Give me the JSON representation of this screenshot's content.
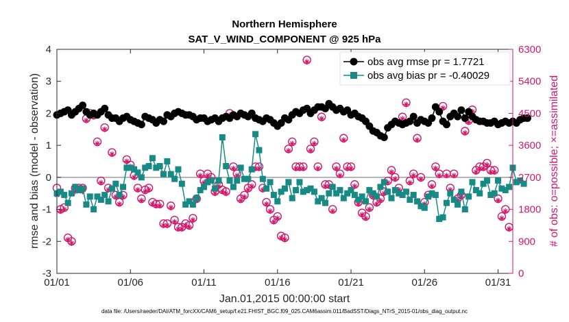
{
  "title_line1": "Northern Hemisphere",
  "title_line2": "SAT_V_WIND_COMPONENT @ 925 hPa",
  "ylabel_left": "rmse and bias (model - observation)",
  "ylabel_right": "# of obs: o=possible; ×=assimilated",
  "xlabel": "Jan.01,2015 00:00:00 start",
  "footnote": "data file: /Users/raeder/DAI/ATM_forcXX/CAM6_setup/f.e21.FHIST_BGC.f09_025.CAM6assim.011/BadSST/Diags_NTrS_2015-01/obs_diag_output.nc",
  "colors": {
    "rmse": "#000000",
    "bias": "#178a85",
    "obs": "#d4166a",
    "zero_line": "#9e9e9e",
    "axis": "#262626"
  },
  "chart_data": {
    "type": "line",
    "n_points": 124,
    "x_start_day": 1,
    "x_step_days": 0.25,
    "xlim": [
      1,
      32
    ],
    "x_tick_values": [
      1,
      6,
      11,
      16,
      21,
      26,
      31
    ],
    "x_tick_labels": [
      "01/01",
      "01/06",
      "01/11",
      "01/16",
      "01/21",
      "01/26",
      "01/31"
    ],
    "ylim_left": [
      -3,
      4
    ],
    "y_left_ticks": [
      -3,
      -2,
      -1,
      0,
      1,
      2,
      3,
      4
    ],
    "ylim_right": [
      0,
      6300
    ],
    "y_right_ticks": [
      0,
      900,
      1800,
      2700,
      3600,
      4500,
      5400,
      6300
    ],
    "zero_line": 0,
    "series": [
      {
        "name": "obs avg rmse",
        "legend": "obs avg rmse pr = 1.7721",
        "axis": "left",
        "marker": "circle",
        "values": [
          1.95,
          2.0,
          2.05,
          2.1,
          1.95,
          2.05,
          2.15,
          2.25,
          2.05,
          1.95,
          2.0,
          1.95,
          2.05,
          2.15,
          1.95,
          1.85,
          1.85,
          1.75,
          1.85,
          1.9,
          1.8,
          1.75,
          1.7,
          1.65,
          1.9,
          1.85,
          1.8,
          1.7,
          1.8,
          1.75,
          1.95,
          1.9,
          2.0,
          2.05,
          2.0,
          1.95,
          1.95,
          1.9,
          1.8,
          1.85,
          1.85,
          1.75,
          1.8,
          1.85,
          1.75,
          1.85,
          1.9,
          1.85,
          1.95,
          1.9,
          2.0,
          1.95,
          1.9,
          2.0,
          1.85,
          1.8,
          1.75,
          1.85,
          1.8,
          1.7,
          1.6,
          1.7,
          1.85,
          1.8,
          1.95,
          2.05,
          2.0,
          2.1,
          2.15,
          2.0,
          2.1,
          2.2,
          2.2,
          2.15,
          2.3,
          2.2,
          2.1,
          2.15,
          2.05,
          2.1,
          1.95,
          2.0,
          1.9,
          1.85,
          1.75,
          1.6,
          1.45,
          1.4,
          1.3,
          1.25,
          1.55,
          1.65,
          1.75,
          1.7,
          1.65,
          1.7,
          1.75,
          1.9,
          1.7,
          1.8,
          1.75,
          1.7,
          1.85,
          2.2,
          2.05,
          1.75,
          1.65,
          1.9,
          2.0,
          1.9,
          2.1,
          1.85,
          2.05,
          1.9,
          1.8,
          1.75,
          1.75,
          1.7,
          1.7,
          1.75,
          1.65,
          1.7,
          1.75,
          1.7,
          1.75,
          1.7,
          1.8,
          1.85,
          1.85
        ]
      },
      {
        "name": "obs avg bias",
        "legend": "obs avg bias pr = -0.40029",
        "axis": "left",
        "marker": "square",
        "values": [
          -0.5,
          -0.45,
          -0.55,
          -0.8,
          -0.5,
          -0.3,
          -0.4,
          -0.35,
          -0.85,
          -0.6,
          -1.0,
          -0.6,
          -0.7,
          -0.55,
          -0.75,
          -0.35,
          -0.2,
          -0.55,
          -0.3,
          0.3,
          0.3,
          0.25,
          0.15,
          0.0,
          0.3,
          0.35,
          0.6,
          0.3,
          0.35,
          0.1,
          0.5,
          0.1,
          -0.05,
          0.25,
          -0.2,
          -0.85,
          -0.75,
          -0.85,
          -0.65,
          -0.4,
          -0.3,
          -0.15,
          -0.1,
          -0.35,
          -0.1,
          1.25,
          0.35,
          -0.1,
          -0.3,
          -0.1,
          0.3,
          -0.05,
          -0.05,
          0.25,
          1.35,
          0.85,
          -0.05,
          -0.35,
          -0.15,
          -0.55,
          -0.75,
          -0.45,
          -0.35,
          -0.15,
          -0.65,
          -0.4,
          -0.15,
          -0.45,
          -0.4,
          -0.35,
          -0.45,
          -0.75,
          -0.65,
          -0.8,
          -0.5,
          -0.3,
          -0.5,
          -0.4,
          -0.65,
          -0.5,
          -0.4,
          -0.55,
          -0.7,
          -0.6,
          -0.75,
          -0.4,
          -0.5,
          -0.6,
          -0.3,
          -0.15,
          -0.45,
          -0.65,
          -0.4,
          -0.5,
          -0.55,
          -0.45,
          -0.7,
          -0.55,
          -0.75,
          -0.9,
          -0.95,
          -0.6,
          -0.5,
          -0.55,
          -1.3,
          -1.25,
          -0.8,
          -0.5,
          -0.7,
          -0.85,
          -0.45,
          -1.0,
          -0.6,
          -0.15,
          -0.4,
          -0.5,
          -0.2,
          -0.1,
          -0.55,
          -0.5,
          -0.1,
          -0.35,
          -0.4,
          -0.3,
          0.3,
          -0.15,
          -0.1,
          -0.2
        ]
      },
      {
        "name": "obs possible",
        "axis": "right",
        "marker": "circle-open",
        "values": [
          2400,
          1800,
          1850,
          1000,
          900,
          2400,
          2400,
          2400,
          4350,
          4500,
          4450,
          3700,
          2600,
          4100,
          2400,
          3400,
          2200,
          2000,
          2200,
          3200,
          3050,
          2750,
          2400,
          2100,
          2350,
          2400,
          2000,
          1950,
          1950,
          1400,
          1400,
          1900,
          1500,
          1300,
          1300,
          1400,
          1350,
          1550,
          2100,
          2800,
          2600,
          2800,
          2700,
          2300,
          2500,
          2350,
          2300,
          4500,
          3000,
          2800,
          2100,
          2200,
          2400,
          2500,
          3000,
          3000,
          2400,
          2000,
          1800,
          1500,
          1600,
          1050,
          1000,
          3500,
          3700,
          3000,
          3000,
          3000,
          6000,
          3500,
          3700,
          3000,
          4400,
          2500,
          2500,
          1800,
          3000,
          2800,
          3800,
          3000,
          3000,
          2500,
          2000,
          1700,
          1600,
          1850,
          2200,
          2000,
          2100,
          2300,
          2600,
          2900,
          2700,
          2400,
          4400,
          4800,
          2600,
          2800,
          3800,
          2700,
          2000,
          2200,
          2500,
          3000,
          2800,
          4700,
          2800,
          2400,
          2800,
          2100,
          2200,
          4000,
          4300,
          4600,
          2900,
          3000,
          3000,
          3100,
          2900,
          2900,
          2100,
          1600,
          1800,
          1300
        ]
      },
      {
        "name": "obs assimilated",
        "axis": "right",
        "marker": "asterisk",
        "values": [
          2200,
          1750,
          1800,
          950,
          850,
          2300,
          2350,
          2300,
          4300,
          4450,
          4400,
          3650,
          2550,
          4050,
          2350,
          3350,
          2150,
          1950,
          2150,
          3150,
          3000,
          2700,
          2350,
          2050,
          2300,
          2350,
          1950,
          1900,
          1900,
          1350,
          1350,
          1850,
          1450,
          1250,
          1250,
          1350,
          1300,
          1500,
          2050,
          2750,
          2550,
          2750,
          2650,
          2250,
          2450,
          2300,
          2250,
          4450,
          2950,
          2750,
          2050,
          2150,
          2350,
          2450,
          2950,
          2950,
          2350,
          1950,
          1750,
          1450,
          1550,
          1000,
          950,
          3450,
          3650,
          2950,
          2950,
          2950,
          5950,
          3450,
          3650,
          2950,
          4350,
          2450,
          2450,
          1750,
          2950,
          2750,
          3750,
          2950,
          2950,
          2450,
          1950,
          1650,
          1550,
          1800,
          2150,
          1950,
          2050,
          2250,
          2550,
          2850,
          2650,
          2350,
          4350,
          4750,
          2550,
          2750,
          3750,
          2650,
          1950,
          2150,
          2450,
          2950,
          2750,
          4650,
          2750,
          2350,
          2750,
          2050,
          2150,
          3950,
          4250,
          4550,
          2850,
          2950,
          2950,
          3050,
          2850,
          2850,
          2050,
          1550,
          1750,
          1250
        ]
      }
    ]
  }
}
